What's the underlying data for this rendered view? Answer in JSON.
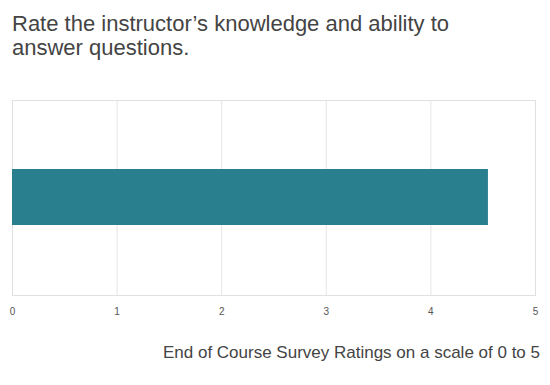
{
  "chart_data": {
    "type": "bar",
    "orientation": "horizontal",
    "title": "Rate the instructor’s knowledge and ability to answer questions.",
    "x_label": "End of Course Survey Ratings on a scale of 0 to 5",
    "categories": [
      null
    ],
    "values": [
      4.55
    ],
    "color": "#2a7f8f",
    "xlim": [
      0,
      5
    ],
    "xticks": [
      0,
      1,
      2,
      3,
      4,
      5
    ],
    "grid": true
  }
}
